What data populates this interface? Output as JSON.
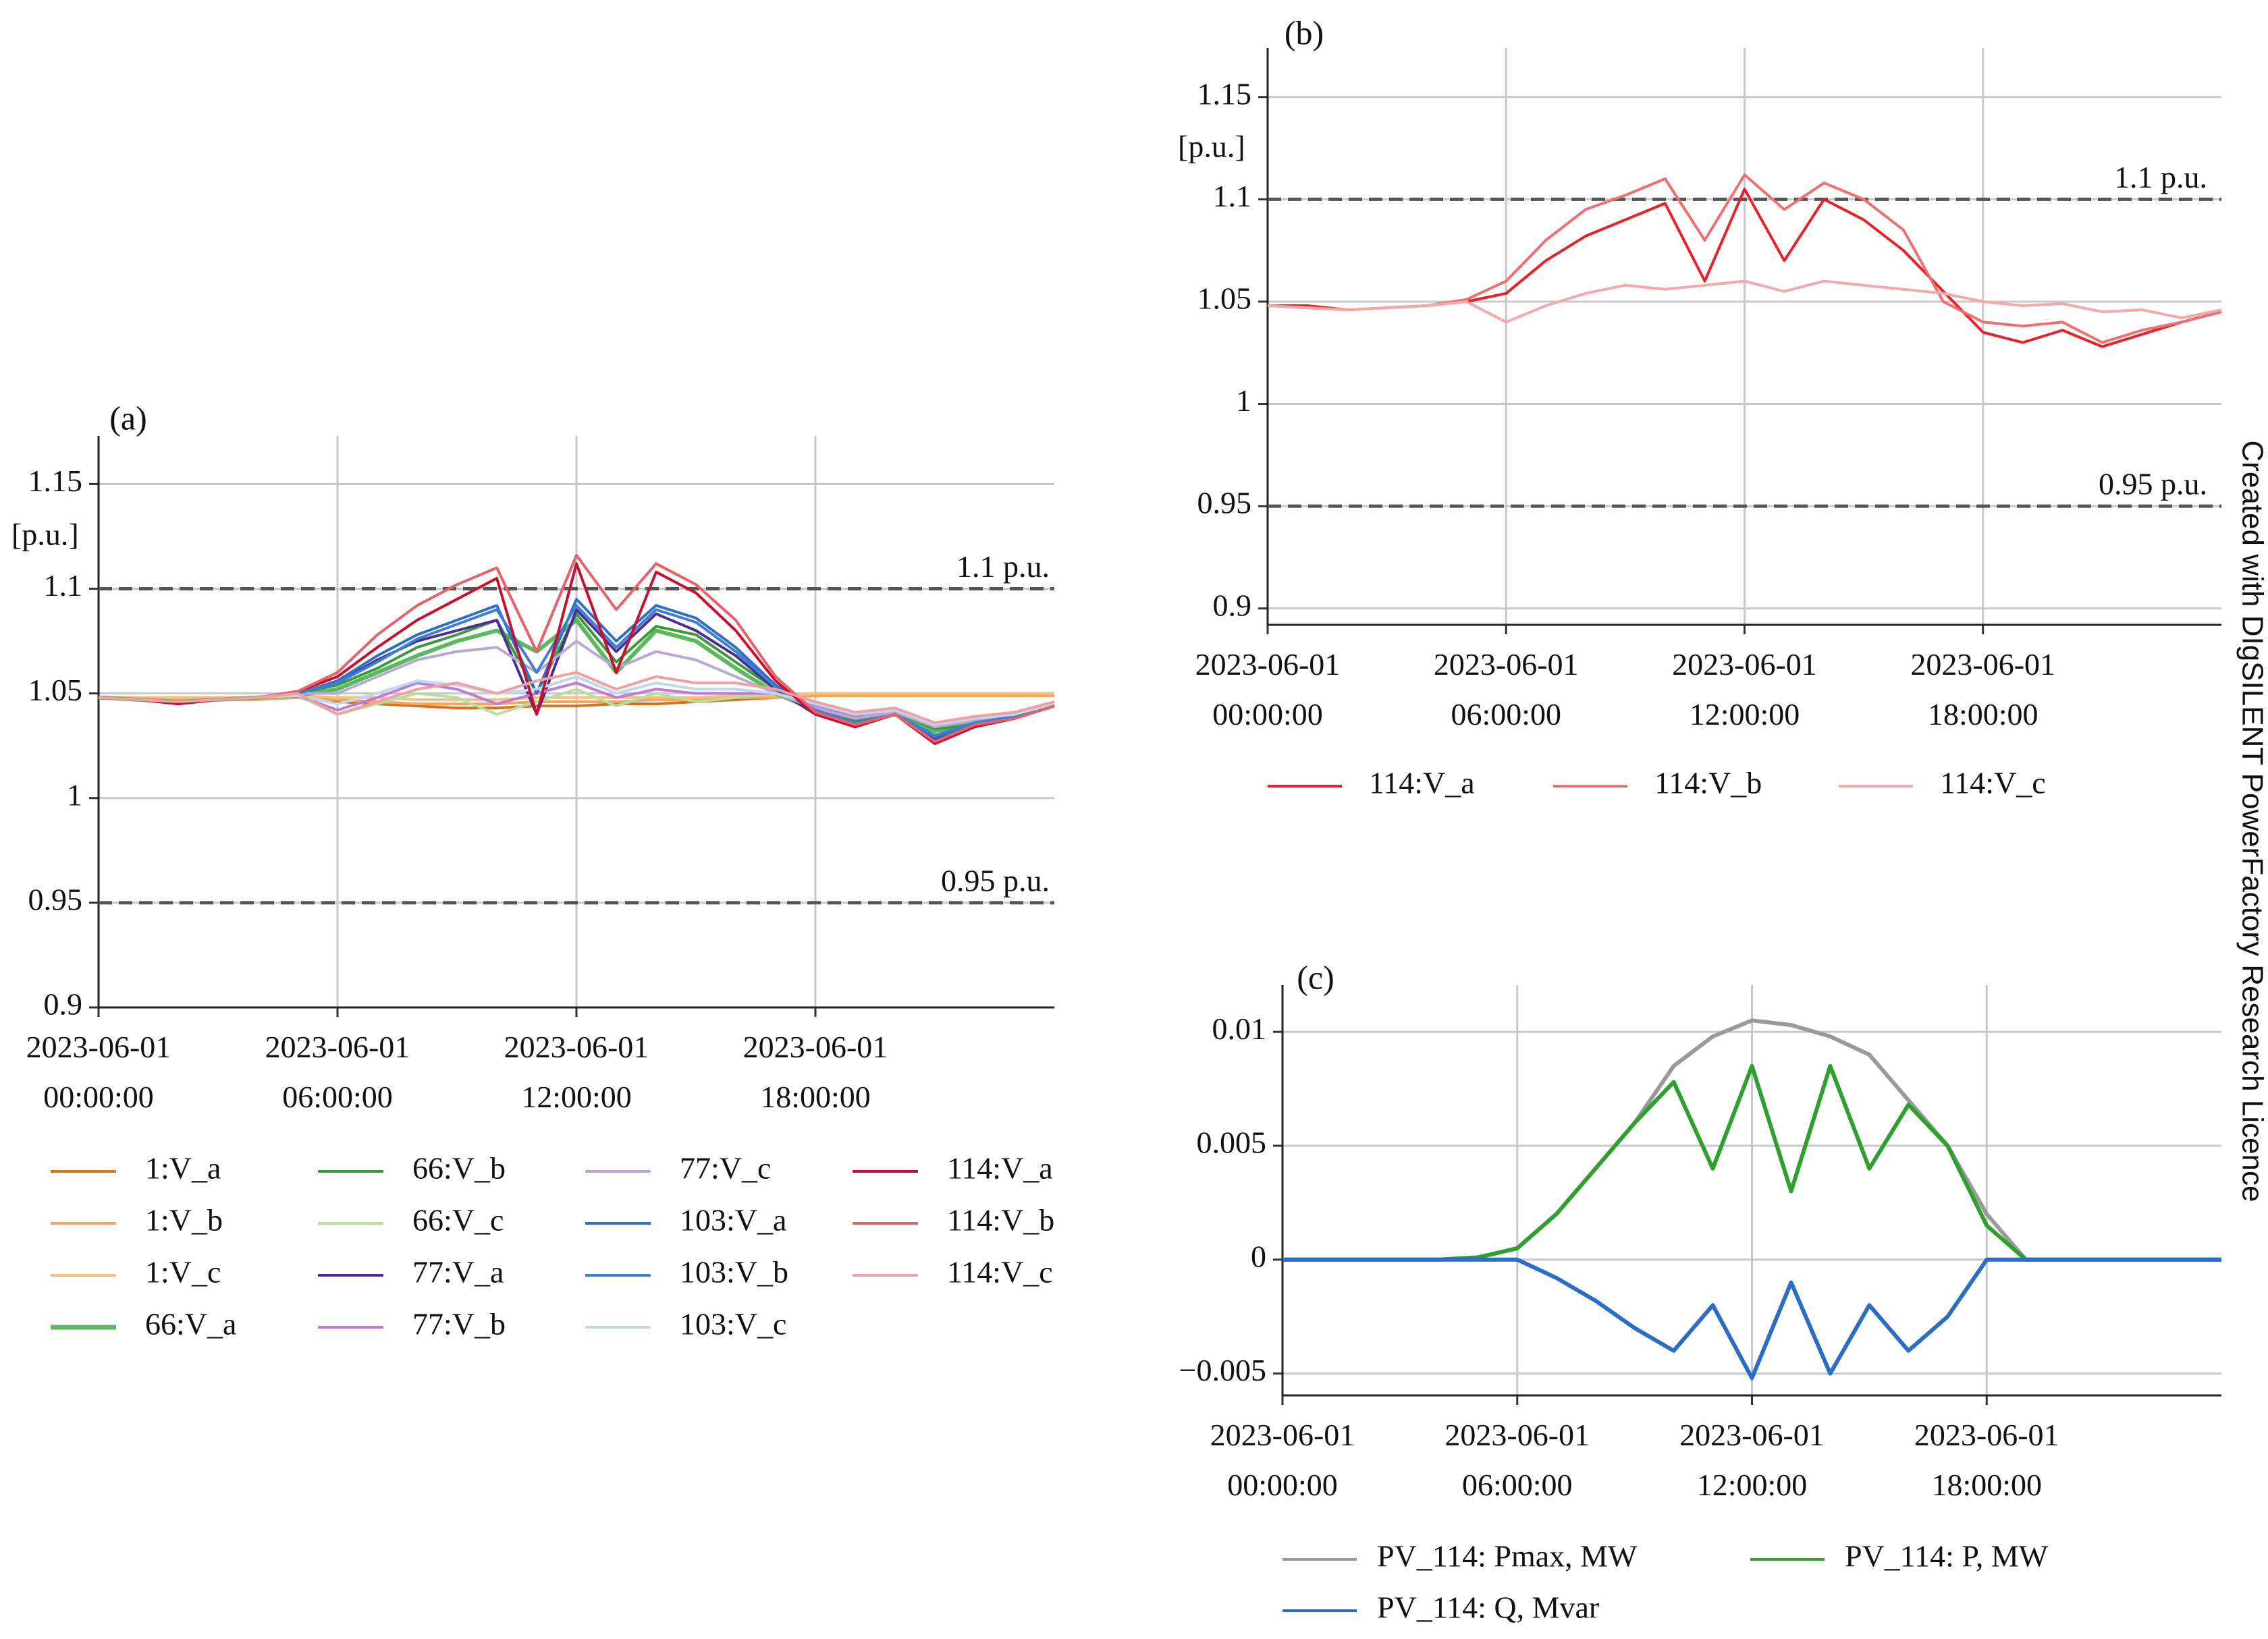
{
  "watermark": "Created with DIgSILENT PowerFactory Research Licence",
  "chart_data": [
    {
      "type": "line",
      "title": "(a)",
      "ylabel": "[p.u.]",
      "x": [
        "2023-06-01 00:00:00",
        "2023-06-01 01:00:00",
        "2023-06-01 02:00:00",
        "2023-06-01 03:00:00",
        "2023-06-01 04:00:00",
        "2023-06-01 05:00:00",
        "2023-06-01 06:00:00",
        "2023-06-01 07:00:00",
        "2023-06-01 08:00:00",
        "2023-06-01 09:00:00",
        "2023-06-01 10:00:00",
        "2023-06-01 11:00:00",
        "2023-06-01 12:00:00",
        "2023-06-01 13:00:00",
        "2023-06-01 14:00:00",
        "2023-06-01 15:00:00",
        "2023-06-01 16:00:00",
        "2023-06-01 17:00:00",
        "2023-06-01 18:00:00",
        "2023-06-01 19:00:00",
        "2023-06-01 20:00:00",
        "2023-06-01 21:00:00",
        "2023-06-01 22:00:00",
        "2023-06-01 23:00:00",
        "2023-06-02 00:00:00"
      ],
      "xlim": [
        "2023-06-01 00:00:00",
        "2023-06-02 00:00:00"
      ],
      "xticks": [
        "2023-06-01 00:00:00",
        "2023-06-01 06:00:00",
        "2023-06-01 12:00:00",
        "2023-06-01 18:00:00"
      ],
      "ylim": [
        0.9,
        1.173
      ],
      "yticks": [
        0.9,
        0.95,
        1,
        1.05,
        1.1,
        1.15
      ],
      "grid": true,
      "reference_lines": [
        {
          "value": 1.1,
          "label": "1.1 p.u."
        },
        {
          "value": 0.95,
          "label": "0.95 p.u."
        }
      ],
      "series": [
        {
          "name": "1:V_a",
          "color": "#d9731a",
          "values": [
            1.048,
            1.048,
            1.047,
            1.047,
            1.048,
            1.048,
            1.046,
            1.045,
            1.044,
            1.043,
            1.043,
            1.044,
            1.044,
            1.045,
            1.045,
            1.046,
            1.047,
            1.048,
            1.049,
            1.049,
            1.049,
            1.049,
            1.049,
            1.049,
            1.049
          ]
        },
        {
          "name": "1:V_b",
          "color": "#f4a460",
          "values": [
            1.048,
            1.047,
            1.047,
            1.047,
            1.047,
            1.048,
            1.047,
            1.046,
            1.045,
            1.045,
            1.045,
            1.046,
            1.046,
            1.046,
            1.047,
            1.047,
            1.048,
            1.048,
            1.049,
            1.049,
            1.049,
            1.049,
            1.049,
            1.049,
            1.049
          ]
        },
        {
          "name": "1:V_c",
          "color": "#f5c07a",
          "values": [
            1.048,
            1.048,
            1.048,
            1.048,
            1.048,
            1.049,
            1.048,
            1.048,
            1.047,
            1.047,
            1.047,
            1.048,
            1.048,
            1.048,
            1.048,
            1.048,
            1.049,
            1.049,
            1.05,
            1.05,
            1.05,
            1.05,
            1.05,
            1.05,
            1.05
          ]
        },
        {
          "name": "66:V_a",
          "color": "#5cb85c",
          "values": [
            1.048,
            1.047,
            1.046,
            1.047,
            1.048,
            1.049,
            1.052,
            1.06,
            1.068,
            1.075,
            1.08,
            1.07,
            1.085,
            1.06,
            1.08,
            1.075,
            1.062,
            1.05,
            1.042,
            1.036,
            1.04,
            1.032,
            1.036,
            1.04,
            1.045
          ]
        },
        {
          "name": "66:V_b",
          "color": "#3a9a3a",
          "values": [
            1.048,
            1.047,
            1.046,
            1.047,
            1.048,
            1.05,
            1.054,
            1.062,
            1.072,
            1.078,
            1.085,
            1.05,
            1.088,
            1.065,
            1.082,
            1.078,
            1.065,
            1.052,
            1.043,
            1.037,
            1.041,
            1.033,
            1.035,
            1.039,
            1.044
          ]
        },
        {
          "name": "66:V_c",
          "color": "#b5dfa0",
          "values": [
            1.048,
            1.047,
            1.046,
            1.047,
            1.048,
            1.049,
            1.04,
            1.045,
            1.05,
            1.048,
            1.04,
            1.046,
            1.052,
            1.044,
            1.05,
            1.046,
            1.048,
            1.05,
            1.045,
            1.04,
            1.042,
            1.036,
            1.038,
            1.04,
            1.045
          ]
        },
        {
          "name": "77:V_a",
          "color": "#4b2c9a",
          "values": [
            1.048,
            1.047,
            1.045,
            1.047,
            1.048,
            1.05,
            1.055,
            1.066,
            1.075,
            1.08,
            1.085,
            1.04,
            1.09,
            1.07,
            1.088,
            1.08,
            1.068,
            1.052,
            1.04,
            1.035,
            1.04,
            1.028,
            1.035,
            1.038,
            1.044
          ]
        },
        {
          "name": "77:V_b",
          "color": "#c07ad8",
          "values": [
            1.048,
            1.047,
            1.046,
            1.047,
            1.048,
            1.049,
            1.042,
            1.048,
            1.055,
            1.052,
            1.045,
            1.05,
            1.055,
            1.048,
            1.052,
            1.05,
            1.05,
            1.05,
            1.044,
            1.039,
            1.042,
            1.034,
            1.037,
            1.04,
            1.045
          ]
        },
        {
          "name": "77:V_c",
          "color": "#b8a8d8",
          "values": [
            1.048,
            1.047,
            1.046,
            1.047,
            1.048,
            1.05,
            1.05,
            1.058,
            1.066,
            1.07,
            1.072,
            1.06,
            1.075,
            1.062,
            1.07,
            1.066,
            1.058,
            1.05,
            1.043,
            1.038,
            1.041,
            1.034,
            1.037,
            1.04,
            1.045
          ]
        },
        {
          "name": "103:V_a",
          "color": "#2f6fc8",
          "values": [
            1.048,
            1.047,
            1.045,
            1.047,
            1.048,
            1.05,
            1.056,
            1.068,
            1.078,
            1.085,
            1.092,
            1.05,
            1.095,
            1.075,
            1.092,
            1.086,
            1.072,
            1.054,
            1.041,
            1.035,
            1.04,
            1.029,
            1.035,
            1.038,
            1.044
          ]
        },
        {
          "name": "103:V_b",
          "color": "#3d7fd0",
          "values": [
            1.048,
            1.047,
            1.046,
            1.047,
            1.048,
            1.05,
            1.055,
            1.065,
            1.076,
            1.083,
            1.09,
            1.06,
            1.092,
            1.072,
            1.09,
            1.084,
            1.07,
            1.053,
            1.042,
            1.036,
            1.04,
            1.03,
            1.036,
            1.039,
            1.044
          ]
        },
        {
          "name": "103:V_c",
          "color": "#c0d8ec",
          "values": [
            1.048,
            1.047,
            1.046,
            1.047,
            1.048,
            1.049,
            1.045,
            1.05,
            1.056,
            1.054,
            1.05,
            1.052,
            1.058,
            1.05,
            1.055,
            1.052,
            1.052,
            1.05,
            1.045,
            1.04,
            1.042,
            1.035,
            1.038,
            1.04,
            1.045
          ]
        },
        {
          "name": "114:V_a",
          "color": "#c8102e",
          "values": [
            1.048,
            1.047,
            1.045,
            1.047,
            1.048,
            1.051,
            1.058,
            1.072,
            1.085,
            1.095,
            1.105,
            1.04,
            1.112,
            1.06,
            1.108,
            1.098,
            1.08,
            1.056,
            1.04,
            1.034,
            1.04,
            1.026,
            1.034,
            1.038,
            1.044
          ]
        },
        {
          "name": "114:V_b",
          "color": "#e8606a",
          "values": [
            1.048,
            1.047,
            1.046,
            1.047,
            1.048,
            1.051,
            1.06,
            1.078,
            1.092,
            1.102,
            1.11,
            1.07,
            1.116,
            1.09,
            1.112,
            1.102,
            1.085,
            1.058,
            1.041,
            1.035,
            1.04,
            1.027,
            1.035,
            1.038,
            1.044
          ]
        },
        {
          "name": "114:V_c",
          "color": "#f0a0a0",
          "values": [
            1.048,
            1.047,
            1.046,
            1.047,
            1.048,
            1.05,
            1.04,
            1.046,
            1.052,
            1.055,
            1.05,
            1.056,
            1.06,
            1.052,
            1.058,
            1.055,
            1.055,
            1.052,
            1.046,
            1.041,
            1.043,
            1.036,
            1.039,
            1.041,
            1.046
          ]
        }
      ]
    },
    {
      "type": "line",
      "title": "(b)",
      "ylabel": "[p.u.]",
      "x": [
        "2023-06-01 00:00:00",
        "2023-06-01 01:00:00",
        "2023-06-01 02:00:00",
        "2023-06-01 03:00:00",
        "2023-06-01 04:00:00",
        "2023-06-01 05:00:00",
        "2023-06-01 06:00:00",
        "2023-06-01 07:00:00",
        "2023-06-01 08:00:00",
        "2023-06-01 09:00:00",
        "2023-06-01 10:00:00",
        "2023-06-01 11:00:00",
        "2023-06-01 12:00:00",
        "2023-06-01 13:00:00",
        "2023-06-01 14:00:00",
        "2023-06-01 15:00:00",
        "2023-06-01 16:00:00",
        "2023-06-01 17:00:00",
        "2023-06-01 18:00:00",
        "2023-06-01 19:00:00",
        "2023-06-01 20:00:00",
        "2023-06-01 21:00:00",
        "2023-06-01 22:00:00",
        "2023-06-01 23:00:00",
        "2023-06-02 00:00:00"
      ],
      "xlim": [
        "2023-06-01 00:00:00",
        "2023-06-02 00:00:00"
      ],
      "xticks": [
        "2023-06-01 00:00:00",
        "2023-06-01 06:00:00",
        "2023-06-01 12:00:00",
        "2023-06-01 18:00:00"
      ],
      "ylim": [
        0.892,
        1.174
      ],
      "yticks": [
        0.9,
        0.95,
        1,
        1.05,
        1.1,
        1.15
      ],
      "grid": true,
      "reference_lines": [
        {
          "value": 1.1,
          "label": "1.1 p.u."
        },
        {
          "value": 0.95,
          "label": "0.95 p.u."
        }
      ],
      "series": [
        {
          "name": "114:V_a",
          "color": "#e8202a",
          "values": [
            1.048,
            1.048,
            1.046,
            1.047,
            1.048,
            1.05,
            1.054,
            1.07,
            1.082,
            1.09,
            1.098,
            1.06,
            1.105,
            1.07,
            1.1,
            1.09,
            1.075,
            1.055,
            1.035,
            1.03,
            1.036,
            1.028,
            1.034,
            1.04,
            1.045
          ]
        },
        {
          "name": "114:V_b",
          "color": "#f07070",
          "values": [
            1.048,
            1.047,
            1.046,
            1.047,
            1.048,
            1.051,
            1.06,
            1.08,
            1.095,
            1.102,
            1.11,
            1.08,
            1.112,
            1.095,
            1.108,
            1.1,
            1.085,
            1.05,
            1.04,
            1.038,
            1.04,
            1.03,
            1.036,
            1.04,
            1.045
          ]
        },
        {
          "name": "114:V_c",
          "color": "#f5a8a8",
          "values": [
            1.048,
            1.047,
            1.046,
            1.047,
            1.048,
            1.05,
            1.04,
            1.048,
            1.054,
            1.058,
            1.056,
            1.058,
            1.06,
            1.055,
            1.06,
            1.058,
            1.056,
            1.054,
            1.05,
            1.048,
            1.049,
            1.045,
            1.046,
            1.042,
            1.046
          ]
        }
      ]
    },
    {
      "type": "line",
      "title": "(c)",
      "x": [
        "2023-06-01 00:00:00",
        "2023-06-01 01:00:00",
        "2023-06-01 02:00:00",
        "2023-06-01 03:00:00",
        "2023-06-01 04:00:00",
        "2023-06-01 05:00:00",
        "2023-06-01 06:00:00",
        "2023-06-01 07:00:00",
        "2023-06-01 08:00:00",
        "2023-06-01 09:00:00",
        "2023-06-01 10:00:00",
        "2023-06-01 11:00:00",
        "2023-06-01 12:00:00",
        "2023-06-01 13:00:00",
        "2023-06-01 14:00:00",
        "2023-06-01 15:00:00",
        "2023-06-01 16:00:00",
        "2023-06-01 17:00:00",
        "2023-06-01 18:00:00",
        "2023-06-01 19:00:00",
        "2023-06-01 20:00:00",
        "2023-06-01 21:00:00",
        "2023-06-01 22:00:00",
        "2023-06-01 23:00:00",
        "2023-06-02 00:00:00"
      ],
      "xlim": [
        "2023-06-01 00:00:00",
        "2023-06-02 00:00:00"
      ],
      "xticks": [
        "2023-06-01 00:00:00",
        "2023-06-01 06:00:00",
        "2023-06-01 12:00:00",
        "2023-06-01 18:00:00"
      ],
      "ylim": [
        -0.00596,
        0.01205
      ],
      "yticks": [
        {
          "value": -0.005,
          "label": "−0.005"
        },
        0,
        0.005,
        0.01
      ],
      "grid": true,
      "series": [
        {
          "name": "PV_114: Pmax, MW",
          "color": "#9a9a9a",
          "values": [
            0,
            0,
            0,
            0,
            0,
            0.0001,
            0.0005,
            0.002,
            0.004,
            0.006,
            0.0085,
            0.0098,
            0.0105,
            0.0103,
            0.0098,
            0.009,
            0.007,
            0.005,
            0.002,
            0,
            0,
            0,
            0,
            0,
            0
          ]
        },
        {
          "name": "PV_114: P, MW",
          "color": "#2ea02e",
          "values": [
            0,
            0,
            0,
            0,
            0,
            0.0001,
            0.0005,
            0.002,
            0.004,
            0.006,
            0.0078,
            0.004,
            0.0085,
            0.003,
            0.0085,
            0.004,
            0.0068,
            0.005,
            0.0015,
            0,
            0,
            0,
            0,
            0,
            0
          ]
        },
        {
          "name": "PV_114: Q, Mvar",
          "color": "#2b6cc4",
          "values": [
            0,
            0,
            0,
            0,
            0,
            0,
            0,
            -0.0008,
            -0.0018,
            -0.003,
            -0.004,
            -0.002,
            -0.0052,
            -0.001,
            -0.005,
            -0.002,
            -0.004,
            -0.0025,
            0,
            0,
            0,
            0,
            0,
            0,
            0
          ]
        }
      ]
    }
  ]
}
